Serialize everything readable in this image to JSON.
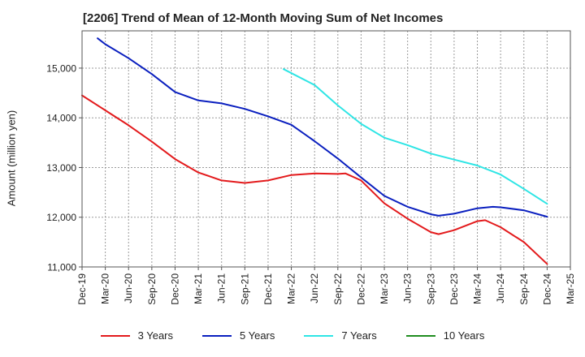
{
  "chart_data": {
    "type": "line",
    "title": "[2206]  Trend of Mean of 12-Month Moving Sum of Net Incomes",
    "xlabel": "",
    "ylabel": "Amount (million yen)",
    "ylim": [
      11000,
      15750
    ],
    "yticks": [
      11000,
      12000,
      13000,
      14000,
      15000
    ],
    "ytick_labels": [
      "11,000",
      "12,000",
      "13,000",
      "14,000",
      "15,000"
    ],
    "x_tick_labels": [
      "Dec-19",
      "Mar-20",
      "Jun-20",
      "Sep-20",
      "Dec-20",
      "Mar-21",
      "Jun-21",
      "Sep-21",
      "Dec-21",
      "Mar-22",
      "Jun-22",
      "Sep-22",
      "Dec-22",
      "Mar-23",
      "Jun-23",
      "Sep-23",
      "Dec-23",
      "Mar-24",
      "Jun-24",
      "Sep-24",
      "Dec-24",
      "Mar-25"
    ],
    "grid": true,
    "legend_position": "bottom",
    "series": [
      {
        "name": "3 Years",
        "color": "#e31a1c",
        "x": [
          "2019-12",
          "2020-03",
          "2020-06",
          "2020-09",
          "2020-12",
          "2021-03",
          "2021-06",
          "2021-09",
          "2021-12",
          "2022-03",
          "2022-06",
          "2022-09",
          "2022-10",
          "2022-12",
          "2023-03",
          "2023-06",
          "2023-09",
          "2023-10",
          "2023-12",
          "2024-03",
          "2024-04",
          "2024-06",
          "2024-09",
          "2024-12"
        ],
        "values": [
          14450,
          14150,
          13850,
          13520,
          13170,
          12900,
          12740,
          12690,
          12740,
          12850,
          12880,
          12870,
          12880,
          12740,
          12280,
          11970,
          11700,
          11660,
          11740,
          11920,
          11940,
          11800,
          11500,
          11060
        ]
      },
      {
        "name": "5 Years",
        "color": "#0a1fbf",
        "x": [
          "2020-02",
          "2020-03",
          "2020-06",
          "2020-09",
          "2020-12",
          "2021-03",
          "2021-06",
          "2021-09",
          "2021-12",
          "2022-03",
          "2022-06",
          "2022-09",
          "2022-12",
          "2023-03",
          "2023-06",
          "2023-09",
          "2023-10",
          "2023-12",
          "2024-03",
          "2024-05",
          "2024-06",
          "2024-09",
          "2024-12"
        ],
        "values": [
          15600,
          15480,
          15200,
          14880,
          14520,
          14350,
          14290,
          14180,
          14030,
          13860,
          13530,
          13180,
          12800,
          12430,
          12210,
          12060,
          12030,
          12070,
          12180,
          12210,
          12200,
          12140,
          12010
        ]
      },
      {
        "name": "7 Years",
        "color": "#2ee5e5",
        "x": [
          "2022-02",
          "2022-06",
          "2022-09",
          "2022-12",
          "2023-03",
          "2023-06",
          "2023-09",
          "2023-12",
          "2024-03",
          "2024-06",
          "2024-09",
          "2024-12"
        ],
        "values": [
          14980,
          14660,
          14250,
          13880,
          13600,
          13450,
          13280,
          13160,
          13040,
          12860,
          12570,
          12270
        ]
      },
      {
        "name": "10 Years",
        "color": "#1f8c1f",
        "x": [],
        "values": []
      }
    ]
  }
}
